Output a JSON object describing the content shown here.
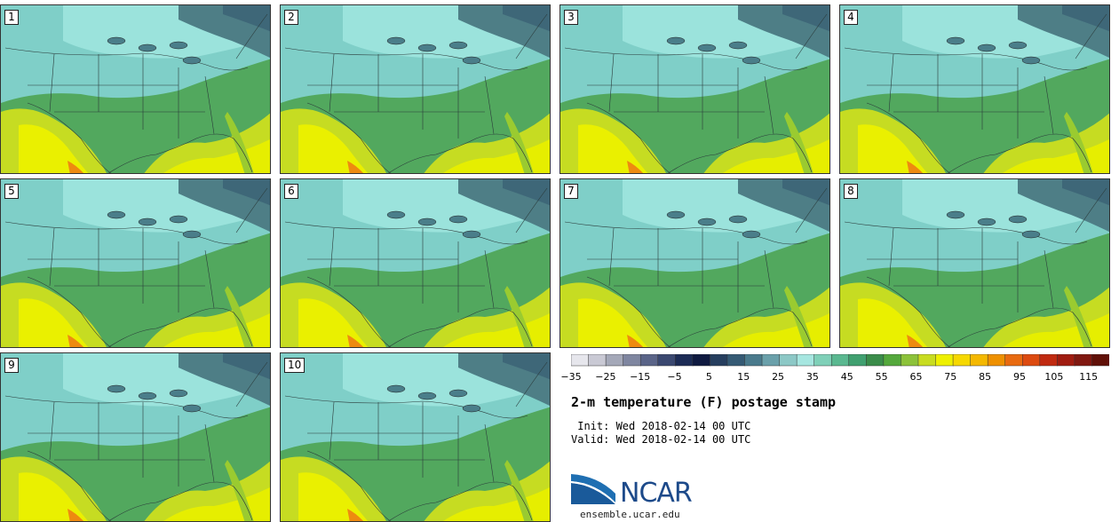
{
  "panels": [
    {
      "label": "1"
    },
    {
      "label": "2"
    },
    {
      "label": "3"
    },
    {
      "label": "4"
    },
    {
      "label": "5"
    },
    {
      "label": "6"
    },
    {
      "label": "7"
    },
    {
      "label": "8"
    },
    {
      "label": "9"
    },
    {
      "label": "10"
    }
  ],
  "legend": {
    "ticks": [
      "−35",
      "−25",
      "−15",
      "−5",
      "5",
      "15",
      "25",
      "35",
      "45",
      "55",
      "65",
      "75",
      "85",
      "95",
      "105",
      "115"
    ],
    "colors": [
      "#e6e6ec",
      "#c9c9d4",
      "#a4a8b8",
      "#7f86a0",
      "#5a6488",
      "#3a4870",
      "#1c2b55",
      "#0f1a40",
      "#263e5e",
      "#355a74",
      "#4a7a8c",
      "#6aa0aa",
      "#8cc8c6",
      "#a6e6e0",
      "#7fd0b8",
      "#5ab890",
      "#40a070",
      "#3a8c4a",
      "#54a83c",
      "#8cc23a",
      "#c8dc20",
      "#eef000",
      "#f6d800",
      "#f4b800",
      "#ee9000",
      "#e86a10",
      "#dc4a10",
      "#c02a10",
      "#a01c10",
      "#801810",
      "#601008"
    ],
    "low_color": "#e0e0e6"
  },
  "title": "2-m temperature (F) postage stamp",
  "init_line": " Init: Wed 2018-02-14 00 UTC",
  "valid_line": "Valid: Wed 2018-02-14 00 UTC",
  "logo": {
    "name": "NCAR",
    "url": "ensemble.ucar.edu"
  }
}
